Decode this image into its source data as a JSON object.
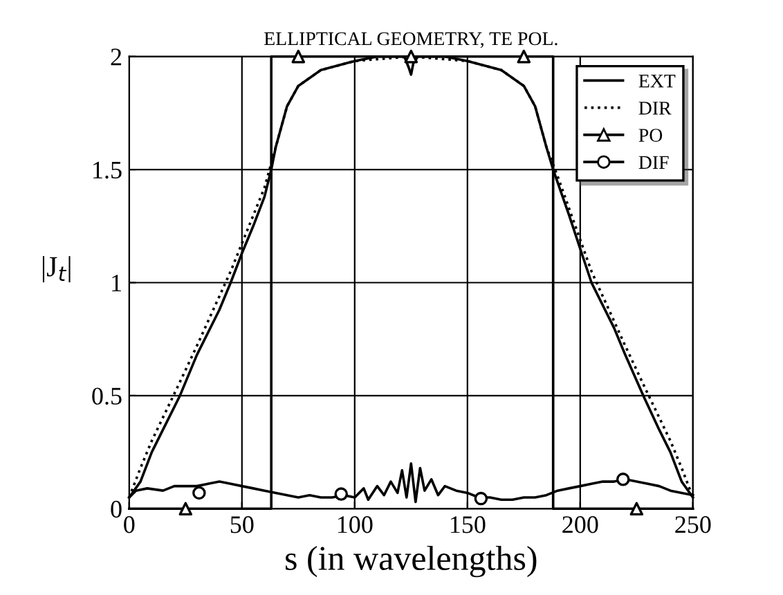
{
  "chart_data": {
    "type": "line",
    "title": "ELLIPTICAL GEOMETRY, TE POL.",
    "xlabel": "s (in wavelengths)",
    "ylabel": "|J$_{t}$|",
    "xlim": [
      0,
      250
    ],
    "ylim": [
      0,
      2
    ],
    "xticks": [
      0,
      50,
      100,
      150,
      200,
      250
    ],
    "yticks": [
      0,
      0.5,
      1,
      1.5,
      2
    ],
    "grid": true,
    "legend": "top right",
    "series": [
      {
        "name": "EXT",
        "color": "#000000",
        "line_style": "solid",
        "marker": "none",
        "x": [
          0,
          5,
          10,
          15,
          22.5,
          30,
          40,
          45,
          50,
          55,
          60,
          63,
          65,
          70,
          75,
          85,
          100,
          110,
          122,
          124,
          125,
          126,
          128,
          140,
          150,
          165,
          175,
          180,
          185,
          188,
          195,
          200,
          205,
          215,
          220,
          228,
          235,
          240,
          245,
          250
        ],
        "values": [
          0.05,
          0.12,
          0.25,
          0.35,
          0.5,
          0.68,
          0.88,
          1.0,
          1.13,
          1.25,
          1.38,
          1.5,
          1.6,
          1.78,
          1.87,
          1.94,
          1.98,
          2.0,
          2.0,
          1.95,
          1.92,
          1.97,
          2.0,
          2.0,
          1.98,
          1.94,
          1.87,
          1.78,
          1.6,
          1.5,
          1.3,
          1.15,
          1.0,
          0.8,
          0.68,
          0.5,
          0.35,
          0.25,
          0.12,
          0.05
        ]
      },
      {
        "name": "DIR",
        "color": "#000000",
        "line_style": "dotted",
        "marker": "none",
        "x": [
          0,
          5,
          10,
          22,
          30,
          45,
          60,
          65,
          70,
          75,
          85,
          100,
          125,
          150,
          165,
          175,
          180,
          185,
          190,
          205,
          220,
          228,
          240,
          245,
          250
        ],
        "values": [
          0.05,
          0.18,
          0.3,
          0.55,
          0.72,
          1.05,
          1.42,
          1.6,
          1.78,
          1.87,
          1.94,
          1.98,
          2.0,
          1.98,
          1.94,
          1.87,
          1.78,
          1.6,
          1.47,
          1.05,
          0.72,
          0.55,
          0.3,
          0.18,
          0.05
        ]
      },
      {
        "name": "PO",
        "color": "#000000",
        "line_style": "solid",
        "x": [
          0,
          63,
          63,
          188,
          188,
          250
        ],
        "values": [
          0,
          0,
          2,
          2,
          0,
          0
        ]
      },
      {
        "type": "scatter",
        "color": "#000000",
        "marker": "triangle",
        "x": [
          25,
          75,
          125,
          175,
          225
        ],
        "values": [
          0,
          2,
          2,
          2,
          0
        ]
      },
      {
        "name": "DIF",
        "color": "#000000",
        "line_style": "solid",
        "x": [
          0,
          3,
          8,
          15,
          20,
          25,
          30,
          35,
          40,
          45,
          50,
          55,
          60,
          65,
          70,
          75,
          80,
          85,
          90,
          95,
          100,
          104,
          106,
          110,
          113,
          116,
          119,
          121,
          123,
          125,
          127,
          129,
          131,
          134,
          137,
          140,
          145,
          150,
          155,
          160,
          165,
          170,
          175,
          180,
          185,
          190,
          195,
          200,
          205,
          210,
          215,
          220,
          225,
          230,
          235,
          240,
          245,
          250
        ],
        "values": [
          0.05,
          0.08,
          0.09,
          0.08,
          0.1,
          0.1,
          0.1,
          0.11,
          0.12,
          0.11,
          0.1,
          0.09,
          0.08,
          0.07,
          0.06,
          0.05,
          0.06,
          0.05,
          0.05,
          0.06,
          0.05,
          0.09,
          0.04,
          0.1,
          0.06,
          0.12,
          0.07,
          0.17,
          0.05,
          0.2,
          0.03,
          0.18,
          0.08,
          0.13,
          0.06,
          0.1,
          0.08,
          0.07,
          0.05,
          0.05,
          0.04,
          0.04,
          0.05,
          0.05,
          0.06,
          0.08,
          0.09,
          0.1,
          0.11,
          0.12,
          0.12,
          0.13,
          0.12,
          0.11,
          0.1,
          0.08,
          0.07,
          0.06
        ]
      },
      {
        "type": "scatter",
        "color": "#000000",
        "marker": "circle",
        "x": [
          31,
          94,
          156,
          219
        ],
        "values": [
          0.07,
          0.065,
          0.045,
          0.13
        ]
      }
    ]
  }
}
